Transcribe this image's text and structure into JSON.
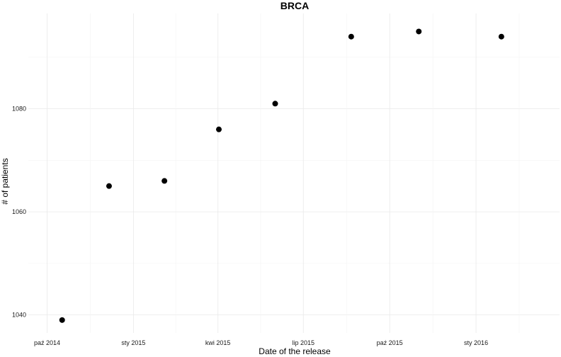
{
  "chart_data": {
    "type": "scatter",
    "title": "BRCA",
    "xlabel": "Date of the release",
    "ylabel": "# of patients",
    "x_type": "date",
    "xlim": [
      "2014-09-11",
      "2016-03-30"
    ],
    "ylim": [
      1036.5,
      1098.5
    ],
    "x_ticks": [
      {
        "value": "2014-10-01",
        "label": "paź 2014"
      },
      {
        "value": "2015-01-01",
        "label": "sty 2015"
      },
      {
        "value": "2015-04-01",
        "label": "kwi 2015"
      },
      {
        "value": "2015-07-01",
        "label": "lip 2015"
      },
      {
        "value": "2015-10-01",
        "label": "paź 2015"
      },
      {
        "value": "2016-01-01",
        "label": "sty 2016"
      }
    ],
    "y_ticks": [
      1040,
      1060,
      1080
    ],
    "grid": true,
    "legend": "none",
    "point_color": "#000000",
    "points": [
      {
        "x": "2014-10-17",
        "y": 1039
      },
      {
        "x": "2014-12-06",
        "y": 1065
      },
      {
        "x": "2015-02-03",
        "y": 1066
      },
      {
        "x": "2015-04-02",
        "y": 1076
      },
      {
        "x": "2015-06-01",
        "y": 1081
      },
      {
        "x": "2015-08-21",
        "y": 1094
      },
      {
        "x": "2015-11-01",
        "y": 1095
      },
      {
        "x": "2016-01-28",
        "y": 1094
      }
    ]
  }
}
